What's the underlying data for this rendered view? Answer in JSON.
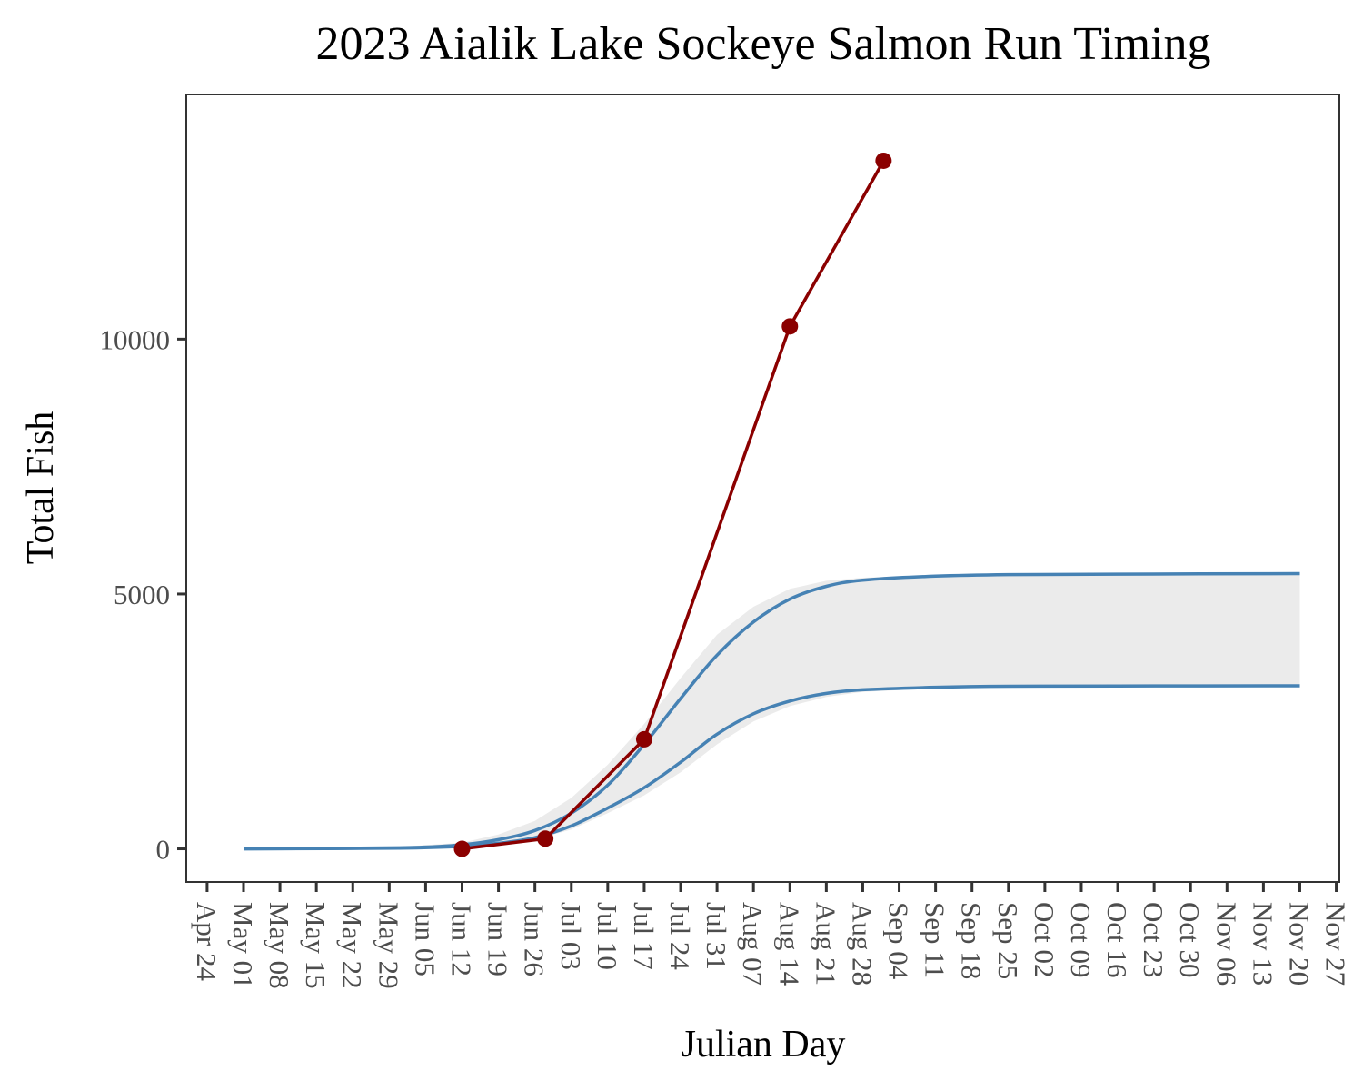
{
  "chart_data": {
    "type": "line",
    "title": "2023 Aialik Lake Sockeye Salmon Run Timing",
    "xlabel": "Julian Day",
    "ylabel": "Total Fish",
    "y_ticks": [
      0,
      5000,
      10000
    ],
    "ylim": [
      -650,
      14800
    ],
    "x_ticks": [
      "Apr 24",
      "May 01",
      "May 08",
      "May 15",
      "May 22",
      "May 29",
      "Jun 05",
      "Jun 12",
      "Jun 19",
      "Jun 26",
      "Jul 03",
      "Jul 10",
      "Jul 17",
      "Jul 24",
      "Jul 31",
      "Aug 07",
      "Aug 14",
      "Aug 21",
      "Aug 28",
      "Sep 04",
      "Sep 11",
      "Sep 18",
      "Sep 25",
      "Oct 02",
      "Oct 09",
      "Oct 16",
      "Oct 23",
      "Oct 30",
      "Nov 06",
      "Nov 13",
      "Nov 20",
      "Nov 27"
    ],
    "x_tick_spacing_days": 7,
    "xlim": [
      "2023-04-20",
      "2023-11-27"
    ],
    "grid": false,
    "legend": "none",
    "series": [
      {
        "kind": "observed",
        "color": "#8B0000",
        "x": [
          "2023-06-12",
          "2023-06-28",
          "2023-07-17",
          "2023-08-14",
          "2023-09-01"
        ],
        "y": [
          0,
          200,
          2150,
          10250,
          13500
        ]
      },
      {
        "kind": "historical-upper",
        "color": "#4682B4",
        "x": [
          "2023-05-01",
          "2023-05-31",
          "2023-06-12",
          "2023-06-19",
          "2023-06-26",
          "2023-07-03",
          "2023-07-10",
          "2023-07-17",
          "2023-07-24",
          "2023-07-31",
          "2023-08-07",
          "2023-08-14",
          "2023-08-21",
          "2023-08-28",
          "2023-09-11",
          "2023-09-25",
          "2023-10-16",
          "2023-11-20"
        ],
        "y": [
          0,
          20,
          80,
          180,
          360,
          700,
          1250,
          2050,
          2950,
          3800,
          4450,
          4900,
          5150,
          5270,
          5350,
          5380,
          5390,
          5400
        ]
      },
      {
        "kind": "historical-lower",
        "color": "#4682B4",
        "x": [
          "2023-05-01",
          "2023-05-31",
          "2023-06-12",
          "2023-06-19",
          "2023-06-26",
          "2023-07-03",
          "2023-07-10",
          "2023-07-17",
          "2023-07-24",
          "2023-07-31",
          "2023-08-07",
          "2023-08-14",
          "2023-08-21",
          "2023-08-28",
          "2023-09-11",
          "2023-09-25",
          "2023-10-16",
          "2023-11-20"
        ],
        "y": [
          0,
          15,
          50,
          110,
          220,
          450,
          800,
          1200,
          1700,
          2250,
          2650,
          2900,
          3050,
          3120,
          3170,
          3190,
          3195,
          3200
        ]
      },
      {
        "kind": "band-upper",
        "color": "#ebebeb",
        "x": [
          "2023-05-01",
          "2023-05-31",
          "2023-06-12",
          "2023-06-19",
          "2023-06-26",
          "2023-07-03",
          "2023-07-10",
          "2023-07-17",
          "2023-07-24",
          "2023-07-31",
          "2023-08-07",
          "2023-08-14",
          "2023-08-21",
          "2023-08-28",
          "2023-09-11",
          "2023-09-25",
          "2023-10-16",
          "2023-11-20"
        ],
        "y": [
          0,
          40,
          120,
          280,
          550,
          1000,
          1650,
          2450,
          3350,
          4200,
          4750,
          5100,
          5260,
          5320,
          5370,
          5390,
          5395,
          5400
        ]
      },
      {
        "kind": "band-lower",
        "color": "#ebebeb",
        "x": [
          "2023-05-01",
          "2023-05-31",
          "2023-06-12",
          "2023-06-19",
          "2023-06-26",
          "2023-07-03",
          "2023-07-10",
          "2023-07-17",
          "2023-07-24",
          "2023-07-31",
          "2023-08-07",
          "2023-08-14",
          "2023-08-21",
          "2023-08-28",
          "2023-09-11",
          "2023-09-25",
          "2023-10-16",
          "2023-11-20"
        ],
        "y": [
          0,
          10,
          30,
          80,
          180,
          380,
          700,
          1050,
          1500,
          2050,
          2500,
          2800,
          2980,
          3080,
          3150,
          3180,
          3190,
          3200
        ]
      }
    ]
  }
}
